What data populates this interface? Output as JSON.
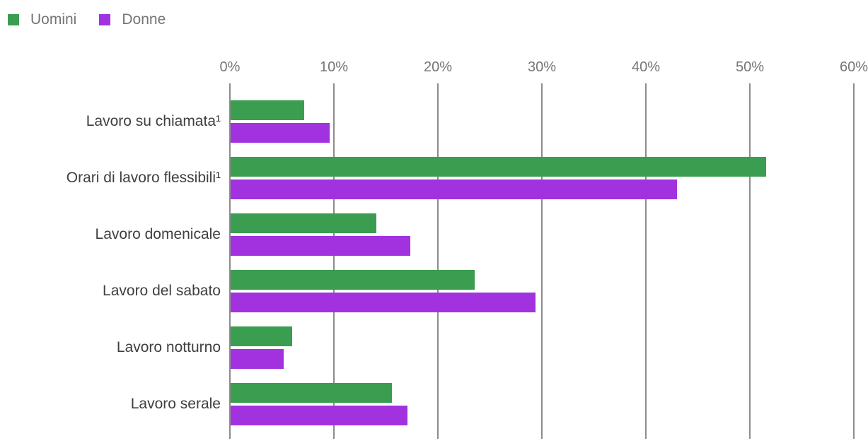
{
  "legend": {
    "items": [
      {
        "label": "Uomini",
        "color": "#3a9d50"
      },
      {
        "label": "Donne",
        "color": "#a232e0"
      }
    ]
  },
  "colors": {
    "uomini_green": "#3a9d50",
    "donne_purple": "#a232e0",
    "gridline_gray": "#8c8c8c",
    "axis_text_gray": "#757575",
    "category_text_gray": "#3f3f3f",
    "background": "#ffffff"
  },
  "chart_data": {
    "type": "bar",
    "orientation": "horizontal",
    "title": "",
    "xlabel": "",
    "ylabel": "",
    "categories": [
      "Lavoro su chiamata¹",
      "Orari di lavoro flessibili¹",
      "Lavoro domenicale",
      "Lavoro del sabato",
      "Lavoro notturno",
      "Lavoro serale"
    ],
    "series": [
      {
        "name": "Uomini",
        "color": "#3a9d50",
        "values": [
          7.1,
          51.5,
          14.0,
          23.5,
          5.9,
          15.5
        ]
      },
      {
        "name": "Donne",
        "color": "#a232e0",
        "values": [
          9.5,
          42.9,
          17.3,
          29.3,
          5.1,
          17.0
        ]
      }
    ],
    "x_ticks": [
      "0%",
      "10%",
      "20%",
      "30%",
      "40%",
      "50%",
      "60%"
    ],
    "xlim": [
      0,
      60
    ],
    "grid": true,
    "legend_position": "top-left"
  }
}
